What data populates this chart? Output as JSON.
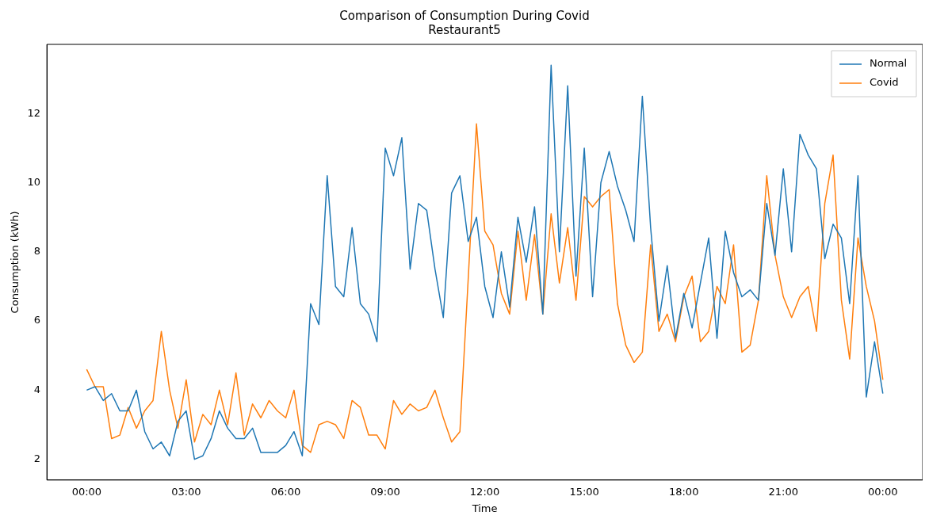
{
  "chart_data": {
    "type": "line",
    "title": "Comparison of Consumption During Covid",
    "subtitle": "Restaurant5",
    "xlabel": "Time",
    "ylabel": "Consumption (kWh)",
    "x": [
      0,
      0.25,
      0.5,
      0.75,
      1,
      1.25,
      1.5,
      1.75,
      2,
      2.25,
      2.5,
      2.75,
      3,
      3.25,
      3.5,
      3.75,
      4,
      4.25,
      4.5,
      4.75,
      5,
      5.25,
      5.5,
      5.75,
      6,
      6.25,
      6.5,
      6.75,
      7,
      7.25,
      7.5,
      7.75,
      8,
      8.25,
      8.5,
      8.75,
      9,
      9.25,
      9.5,
      9.75,
      10,
      10.25,
      10.5,
      10.75,
      11,
      11.25,
      11.5,
      11.75,
      12,
      12.25,
      12.5,
      12.75,
      13,
      13.25,
      13.5,
      13.75,
      14,
      14.25,
      14.5,
      14.75,
      15,
      15.25,
      15.5,
      15.75,
      16,
      16.25,
      16.5,
      16.75,
      17,
      17.25,
      17.5,
      17.75,
      18,
      18.25,
      18.5,
      18.75,
      19,
      19.25,
      19.5,
      19.75,
      20,
      20.25,
      20.5,
      20.75,
      21,
      21.25,
      21.5,
      21.75,
      22,
      22.25,
      22.5,
      22.75,
      23,
      23.25,
      23.5,
      23.75,
      24
    ],
    "series": [
      {
        "name": "Normal",
        "color": "#1f77b4",
        "values": [
          4.0,
          4.1,
          3.7,
          3.9,
          3.4,
          3.4,
          4.0,
          2.8,
          2.3,
          2.5,
          2.1,
          3.1,
          3.4,
          2.0,
          2.1,
          2.6,
          3.4,
          2.9,
          2.6,
          2.6,
          2.9,
          2.2,
          2.2,
          2.2,
          2.4,
          2.8,
          2.1,
          6.5,
          5.9,
          10.2,
          7.0,
          6.7,
          8.7,
          6.5,
          6.2,
          5.4,
          11.0,
          10.2,
          11.3,
          7.5,
          9.4,
          9.2,
          7.5,
          6.1,
          9.7,
          10.2,
          8.3,
          9.0,
          7.0,
          6.1,
          8.0,
          6.4,
          9.0,
          7.7,
          9.3,
          6.2,
          13.4,
          8.0,
          12.8,
          7.3,
          11.0,
          6.7,
          10.0,
          10.9,
          9.9,
          9.2,
          8.3,
          12.5,
          8.7,
          6.0,
          7.6,
          5.5,
          6.8,
          5.8,
          7.1,
          8.4,
          5.5,
          8.6,
          7.4,
          6.7,
          6.9,
          6.6,
          9.4,
          7.9,
          10.4,
          8.0,
          11.4,
          10.8,
          10.4,
          7.8,
          8.8,
          8.4,
          6.5,
          10.2,
          3.8,
          5.4,
          3.9
        ]
      },
      {
        "name": "Covid",
        "color": "#ff7f0e",
        "values": [
          4.6,
          4.1,
          4.1,
          2.6,
          2.7,
          3.5,
          2.9,
          3.4,
          3.7,
          5.7,
          4.0,
          2.9,
          4.3,
          2.5,
          3.3,
          3.0,
          4.0,
          3.0,
          4.5,
          2.7,
          3.6,
          3.2,
          3.7,
          3.4,
          3.2,
          4.0,
          2.4,
          2.2,
          3.0,
          3.1,
          3.0,
          2.6,
          3.7,
          3.5,
          2.7,
          2.7,
          2.3,
          3.7,
          3.3,
          3.6,
          3.4,
          3.5,
          4.0,
          3.2,
          2.5,
          2.8,
          7.2,
          11.7,
          8.6,
          8.2,
          6.8,
          6.2,
          8.6,
          6.6,
          8.5,
          6.2,
          9.1,
          7.1,
          8.7,
          6.6,
          9.6,
          9.3,
          9.6,
          9.8,
          6.5,
          5.3,
          4.8,
          5.1,
          8.2,
          5.7,
          6.2,
          5.4,
          6.7,
          7.3,
          5.4,
          5.7,
          7.0,
          6.5,
          8.2,
          5.1,
          5.3,
          6.6,
          10.2,
          7.9,
          6.7,
          6.1,
          6.7,
          7.0,
          5.7,
          9.4,
          10.8,
          6.6,
          4.9,
          8.4,
          7.0,
          6.0,
          4.3
        ]
      }
    ],
    "xlim": [
      -1.2,
      25.2
    ],
    "xticks": [
      {
        "value": 0,
        "label": "00:00"
      },
      {
        "value": 3,
        "label": "03:00"
      },
      {
        "value": 6,
        "label": "06:00"
      },
      {
        "value": 9,
        "label": "09:00"
      },
      {
        "value": 12,
        "label": "12:00"
      },
      {
        "value": 15,
        "label": "15:00"
      },
      {
        "value": 18,
        "label": "18:00"
      },
      {
        "value": 21,
        "label": "21:00"
      },
      {
        "value": 24,
        "label": "00:00"
      }
    ],
    "ylim": [
      1.4,
      14.0
    ],
    "yticks": [
      2,
      4,
      6,
      8,
      10,
      12
    ],
    "grid": false,
    "legend": "top right",
    "marker": "none",
    "line_style": "solid"
  }
}
